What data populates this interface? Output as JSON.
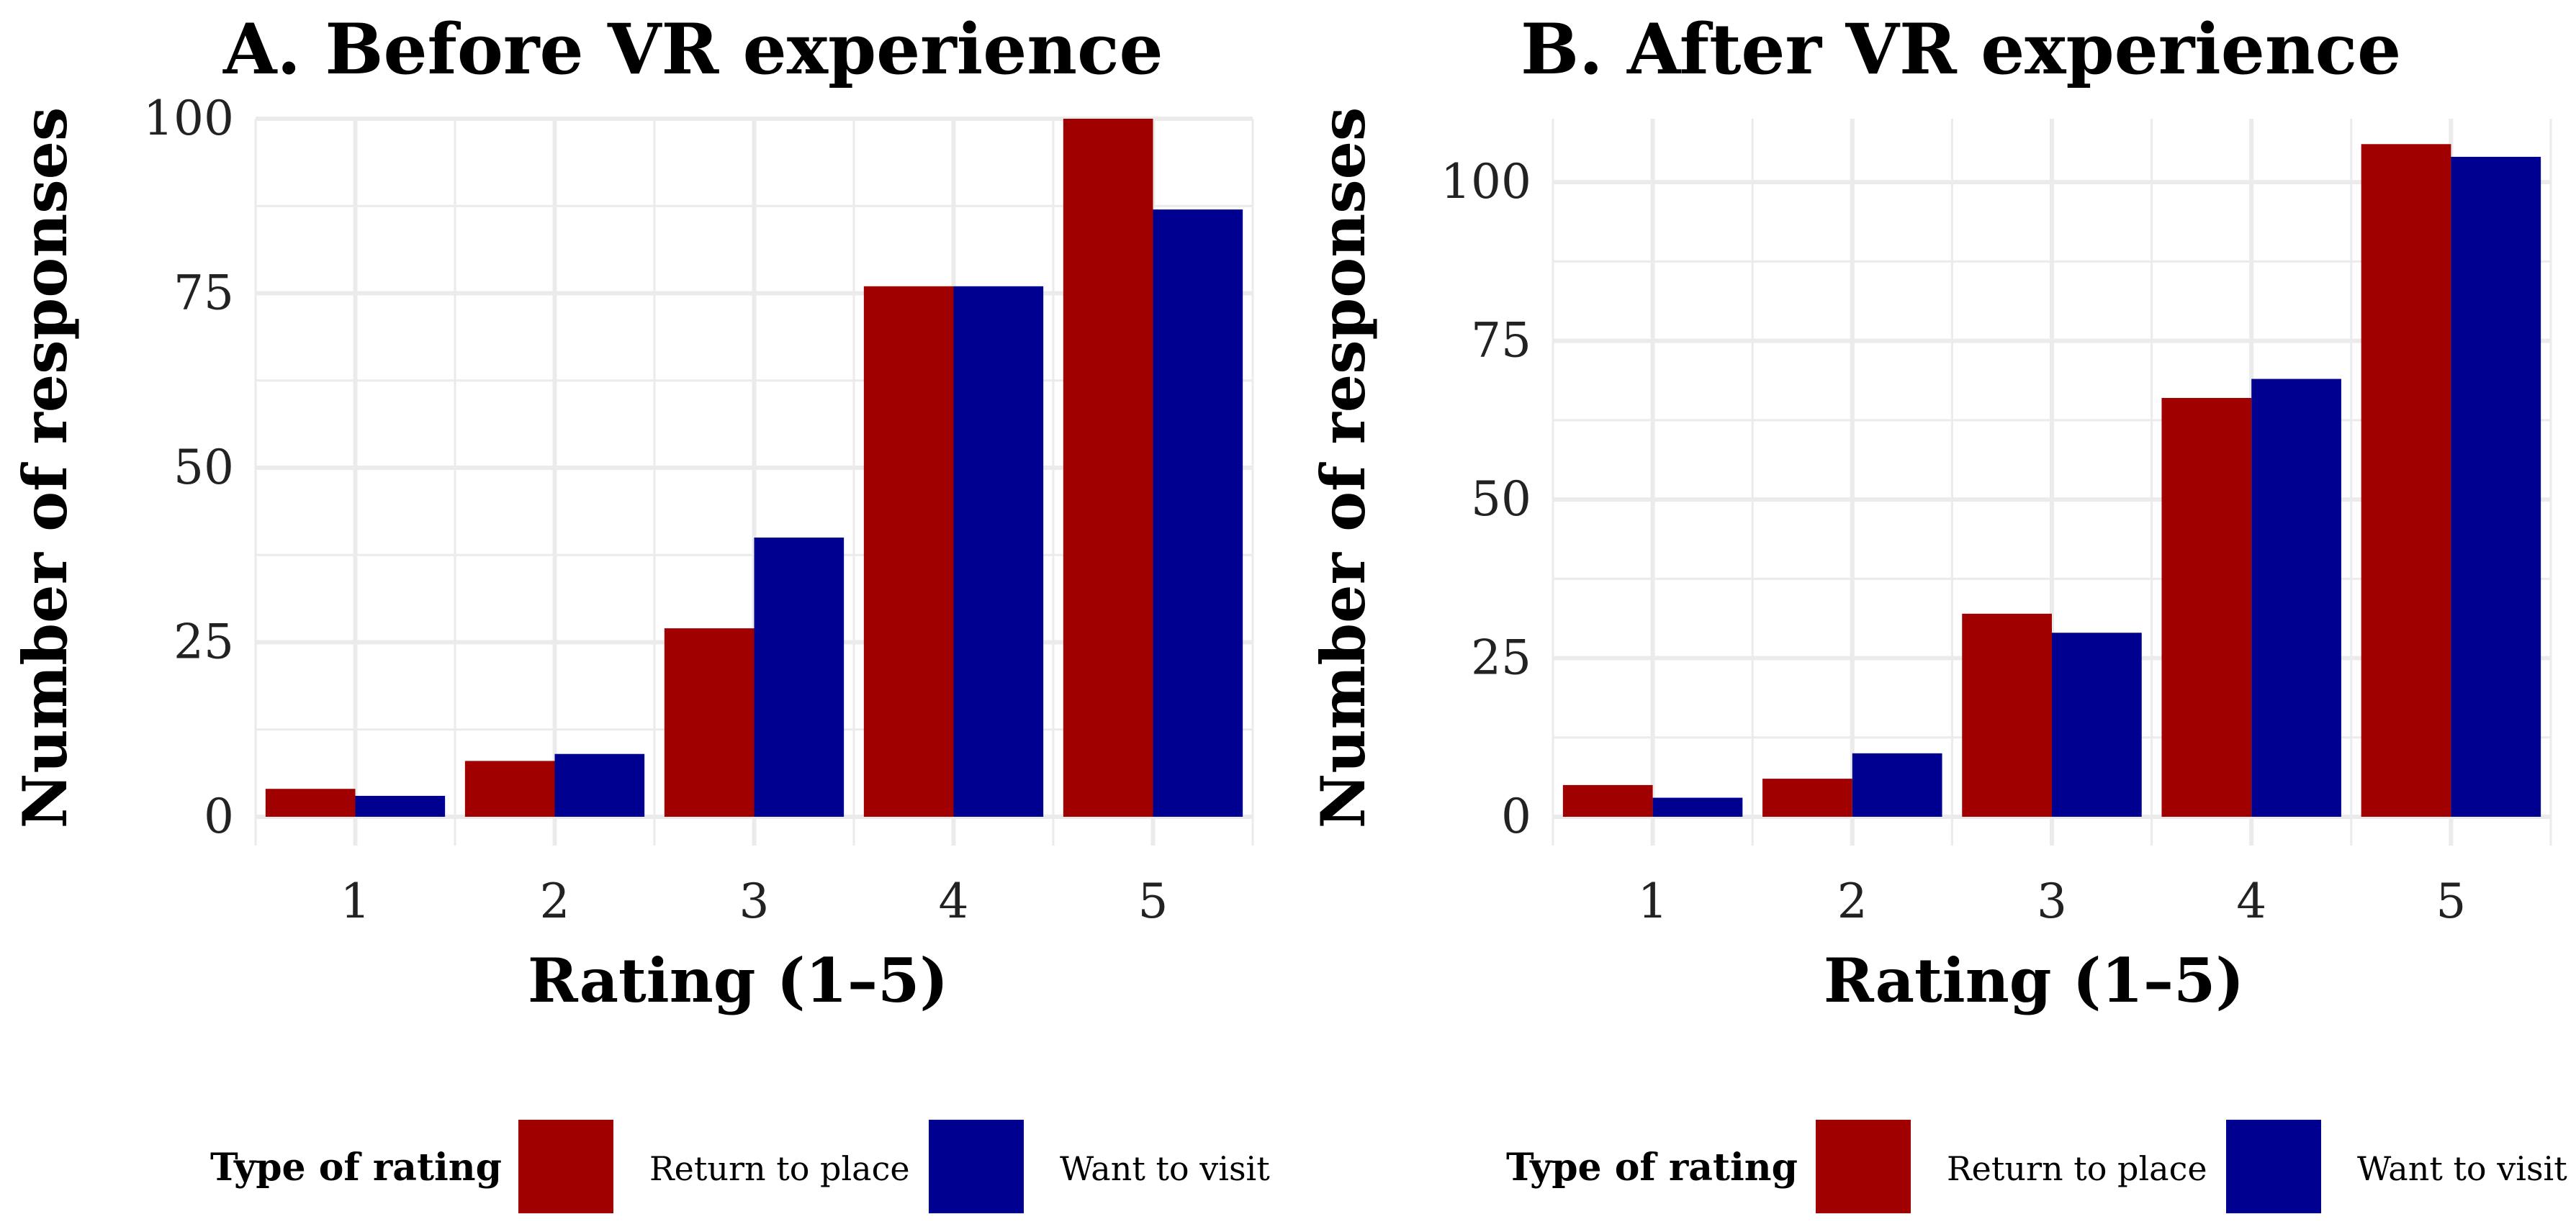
{
  "chart_data": [
    {
      "type": "bar",
      "title": "A. Before VR experience",
      "xlabel": "Rating (1–5)",
      "ylabel": "Number of responses",
      "categories": [
        "1",
        "2",
        "3",
        "4",
        "5"
      ],
      "series": [
        {
          "name": "Return to place",
          "color": "#a00000",
          "values": [
            4,
            8,
            27,
            76,
            100
          ]
        },
        {
          "name": "Want to visit",
          "color": "#000090",
          "values": [
            3,
            9,
            40,
            76,
            87
          ]
        }
      ],
      "ylim": [
        0,
        100
      ],
      "yticks": [
        0,
        25,
        50,
        75,
        100
      ],
      "grid": true,
      "legend": {
        "title": "Type of rating",
        "position": "bottom"
      }
    },
    {
      "type": "bar",
      "title": "B. After VR experience",
      "xlabel": "Rating (1–5)",
      "ylabel": "Number of responses",
      "categories": [
        "1",
        "2",
        "3",
        "4",
        "5"
      ],
      "series": [
        {
          "name": "Return to place",
          "color": "#a00000",
          "values": [
            5,
            6,
            32,
            66,
            106
          ]
        },
        {
          "name": "Want to visit",
          "color": "#000090",
          "values": [
            3,
            10,
            29,
            69,
            104
          ]
        }
      ],
      "ylim": [
        0,
        110
      ],
      "yticks": [
        0,
        25,
        50,
        75,
        100
      ],
      "grid": true,
      "legend": {
        "title": "Type of rating",
        "position": "bottom"
      }
    }
  ]
}
